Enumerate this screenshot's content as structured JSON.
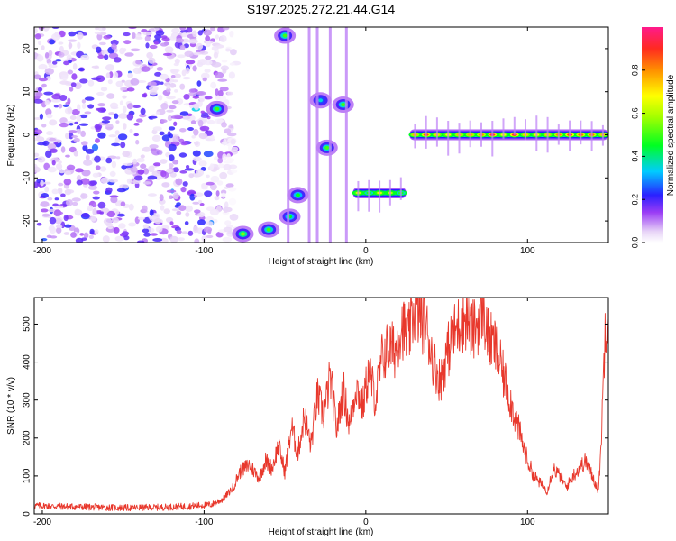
{
  "title": "S197.2025.272.21.44.G14",
  "chart_data": [
    {
      "type": "heatmap",
      "xlabel": "Height of straight line (km)",
      "ylabel": "Frequency (Hz)",
      "xlim": [
        -205,
        150
      ],
      "ylim": [
        -25,
        25
      ],
      "xticks": [
        -200,
        -100,
        0,
        100
      ],
      "yticks": [
        -20,
        -10,
        0,
        10,
        20
      ],
      "colorbar": {
        "label": "Normalized spectral amplitude",
        "range": [
          0,
          1
        ],
        "ticks": [
          "0.0",
          "0.2",
          "0.4",
          "0.6",
          "0.8"
        ],
        "tick_values": [
          0,
          0.2,
          0.4,
          0.6,
          0.8
        ]
      },
      "features": [
        {
          "name": "noise-field",
          "x_range": [
            -205,
            -80
          ],
          "freq_range": [
            -25,
            25
          ],
          "amplitude": 0.25
        },
        {
          "name": "blob-1",
          "x": -92,
          "freq": 6,
          "amplitude": 0.5
        },
        {
          "name": "blob-2",
          "x": -76,
          "freq": -23,
          "amplitude": 0.55
        },
        {
          "name": "blob-3",
          "x": -60,
          "freq": -22,
          "amplitude": 0.5
        },
        {
          "name": "blob-4",
          "x": -50,
          "freq": 23,
          "amplitude": 0.5
        },
        {
          "name": "blob-5",
          "x": -47,
          "freq": -19,
          "amplitude": 0.45
        },
        {
          "name": "blob-6",
          "x": -42,
          "freq": -14,
          "amplitude": 0.45
        },
        {
          "name": "blob-7",
          "x": -28,
          "freq": 8,
          "amplitude": 0.35
        },
        {
          "name": "blob-8",
          "x": -24,
          "freq": -3,
          "amplitude": 0.5
        },
        {
          "name": "blob-9",
          "x": -14,
          "freq": 7,
          "amplitude": 0.5
        },
        {
          "name": "segment-1",
          "x_range": [
            -8,
            25
          ],
          "freq": -13.5,
          "amplitude": 0.65
        },
        {
          "name": "segment-2",
          "x_range": [
            27,
            150
          ],
          "freq": 0,
          "amplitude": 0.95
        }
      ]
    },
    {
      "type": "line",
      "xlabel": "Height of straight line (km)",
      "ylabel": "SNR (10 * v/v)",
      "xlim": [
        -205,
        150
      ],
      "ylim": [
        0,
        570
      ],
      "xticks": [
        -200,
        -100,
        0,
        100
      ],
      "yticks": [
        0,
        100,
        200,
        300,
        400,
        500
      ],
      "series": [
        {
          "name": "SNR",
          "color": "#e8382c",
          "x": [
            -205,
            -190,
            -170,
            -150,
            -130,
            -110,
            -95,
            -88,
            -82,
            -78,
            -72,
            -66,
            -62,
            -58,
            -54,
            -50,
            -46,
            -42,
            -38,
            -34,
            -30,
            -26,
            -22,
            -18,
            -14,
            -10,
            -6,
            -2,
            2,
            6,
            10,
            14,
            18,
            22,
            26,
            30,
            34,
            38,
            42,
            46,
            50,
            54,
            58,
            62,
            66,
            70,
            72,
            76,
            80,
            84,
            88,
            92,
            96,
            100,
            104,
            108,
            112,
            116,
            120,
            124,
            128,
            132,
            136,
            140,
            144,
            146,
            148,
            150
          ],
          "y": [
            22,
            20,
            18,
            16,
            17,
            20,
            25,
            40,
            70,
            110,
            130,
            95,
            140,
            120,
            180,
            110,
            230,
            160,
            260,
            180,
            310,
            260,
            360,
            220,
            330,
            230,
            340,
            280,
            380,
            300,
            410,
            440,
            430,
            500,
            460,
            540,
            520,
            480,
            400,
            350,
            420,
            470,
            500,
            520,
            480,
            510,
            550,
            460,
            440,
            380,
            320,
            260,
            200,
            140,
            100,
            80,
            60,
            120,
            100,
            70,
            100,
            120,
            140,
            100,
            60,
            240,
            500,
            530
          ]
        }
      ]
    }
  ]
}
